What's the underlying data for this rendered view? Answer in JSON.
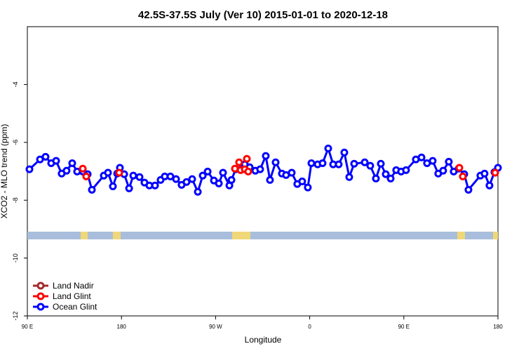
{
  "chart_data": {
    "type": "line",
    "title": "42.5S-37.5S July (Ver 10)   2015-01-01 to 2020-12-18",
    "x_label": "Longitude",
    "y_label": "XCO2 - MLO trend (ppm)",
    "xlim": [
      90,
      540
    ],
    "xticks": [
      {
        "value": 90,
        "label": "90 E"
      },
      {
        "value": 180,
        "label": "180"
      },
      {
        "value": 270,
        "label": "90 W"
      },
      {
        "value": 360,
        "label": "0"
      },
      {
        "value": 450,
        "label": "90 E"
      },
      {
        "value": 540,
        "label": "180"
      }
    ],
    "ylim": [
      -12,
      -2
    ],
    "yticks": [
      -12,
      -10,
      -8,
      -6,
      -4
    ],
    "legend": "bottom-left",
    "series": [
      {
        "name": "Land Nadir",
        "color": "#a52a2a",
        "x": [],
        "values": []
      },
      {
        "name": "Land Glint",
        "color": "#ff0000",
        "x": [
          143.0,
          146.3,
          177.8,
          288.5,
          292.5,
          293.9,
          297.9,
          299.9,
          301.2,
          503.1,
          506.4,
          537.3
        ],
        "values": [
          -6.91,
          -7.18,
          -7.05,
          -6.91,
          -6.69,
          -6.96,
          -6.93,
          -6.57,
          -7.01,
          -6.88,
          -7.18,
          -7.05
        ]
      },
      {
        "name": "Ocean Glint",
        "color": "#0000ff",
        "line": true,
        "x": [
          92.0,
          102.1,
          107.4,
          112.8,
          117.5,
          122.8,
          127.5,
          132.9,
          137.6,
          143.0,
          147.7,
          151.7,
          163.1,
          167.1,
          171.8,
          175.9,
          178.5,
          182.6,
          187.3,
          191.3,
          197.3,
          202.0,
          206.7,
          212.1,
          217.4,
          221.4,
          226.8,
          232.2,
          237.5,
          242.2,
          247.6,
          253.0,
          257.7,
          262.4,
          268.4,
          273.1,
          277.1,
          283.2,
          285.2,
          289.2,
          297.9,
          302.6,
          308.0,
          312.6,
          318.0,
          322.0,
          327.4,
          333.4,
          337.4,
          342.8,
          348.1,
          352.8,
          358.2,
          361.6,
          367.6,
          372.3,
          377.7,
          382.4,
          387.7,
          393.1,
          397.8,
          402.5,
          412.6,
          417.9,
          423.3,
          428.0,
          432.7,
          437.4,
          442.7,
          447.4,
          452.1,
          461.5,
          466.9,
          472.2,
          477.6,
          482.9,
          487.6,
          493.0,
          497.7,
          502.4,
          507.8,
          511.8,
          523.2,
          527.2,
          531.9,
          536.6,
          540.0
        ],
        "values": [
          -6.93,
          -6.59,
          -6.5,
          -6.72,
          -6.64,
          -7.08,
          -6.98,
          -6.72,
          -7.01,
          -7.01,
          -7.1,
          -7.64,
          -7.15,
          -7.05,
          -7.52,
          -7.08,
          -6.88,
          -7.1,
          -7.59,
          -7.15,
          -7.2,
          -7.39,
          -7.49,
          -7.49,
          -7.3,
          -7.18,
          -7.18,
          -7.27,
          -7.47,
          -7.37,
          -7.27,
          -7.71,
          -7.15,
          -7.01,
          -7.32,
          -7.42,
          -7.05,
          -7.49,
          -7.3,
          -6.93,
          -6.76,
          -6.86,
          -6.98,
          -6.93,
          -6.47,
          -7.3,
          -6.69,
          -7.08,
          -7.13,
          -7.05,
          -7.44,
          -7.35,
          -7.56,
          -6.72,
          -6.76,
          -6.72,
          -6.21,
          -6.76,
          -6.76,
          -6.35,
          -7.2,
          -6.74,
          -6.69,
          -6.81,
          -7.25,
          -6.74,
          -7.1,
          -7.25,
          -6.96,
          -7.01,
          -6.96,
          -6.59,
          -6.52,
          -6.72,
          -6.64,
          -7.08,
          -6.98,
          -6.67,
          -7.01,
          -6.91,
          -7.1,
          -7.64,
          -7.15,
          -7.08,
          -7.49,
          -7.03,
          -6.88
        ]
      }
    ]
  }
}
